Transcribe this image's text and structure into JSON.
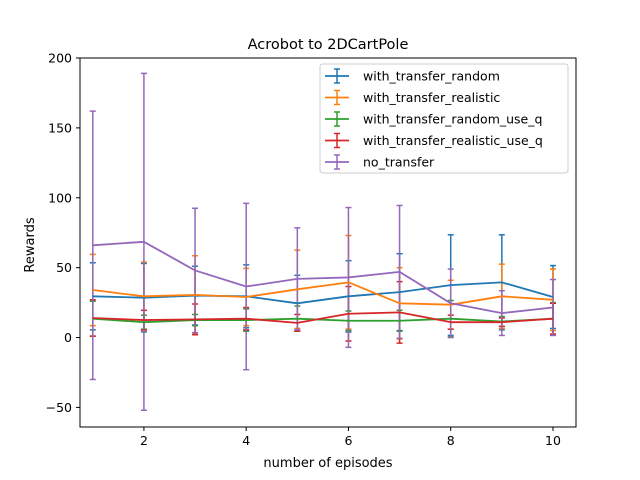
{
  "chart_data": {
    "type": "line",
    "title": "Acrobot to 2DCartPole",
    "xlabel": "number of episodes",
    "ylabel": "Rewards",
    "xlim": [
      0.75,
      10.45
    ],
    "ylim": [
      -64,
      200
    ],
    "x_ticks": [
      2,
      4,
      6,
      8,
      10
    ],
    "y_ticks": [
      -50,
      0,
      50,
      100,
      150,
      200
    ],
    "grid": false,
    "legend_position": "top-right",
    "x": [
      1,
      2,
      3,
      4,
      5,
      6,
      7,
      8,
      9,
      10
    ],
    "series": [
      {
        "name": "with_transfer_random",
        "color": "#1f77b4",
        "values": [
          29.5,
          28.5,
          30.0,
          29.5,
          24.5,
          29.5,
          32.5,
          37.5,
          39.5,
          29.0
        ],
        "errors": [
          24.0,
          24.5,
          21.0,
          22.5,
          20.0,
          25.5,
          27.5,
          36.0,
          34.0,
          22.5
        ]
      },
      {
        "name": "with_transfer_realistic",
        "color": "#ff7f0e",
        "values": [
          34.0,
          29.5,
          30.5,
          29.0,
          34.5,
          39.5,
          24.5,
          23.5,
          29.5,
          27.0
        ],
        "errors": [
          25.5,
          24.5,
          28.0,
          20.5,
          28.0,
          33.5,
          25.5,
          17.5,
          23.0,
          22.0
        ]
      },
      {
        "name": "with_transfer_random_use_q",
        "color": "#2ca02c",
        "values": [
          13.5,
          11.0,
          12.5,
          12.5,
          13.5,
          12.0,
          12.0,
          13.5,
          11.5,
          13.5
        ],
        "errors": [
          12.5,
          5.0,
          4.0,
          8.0,
          9.0,
          7.0,
          7.5,
          13.0,
          3.5,
          11.5
        ]
      },
      {
        "name": "with_transfer_realistic_use_q",
        "color": "#d62728",
        "values": [
          14.0,
          12.5,
          13.0,
          13.5,
          10.5,
          17.0,
          18.0,
          11.0,
          11.0,
          13.5
        ],
        "errors": [
          13.0,
          7.0,
          11.0,
          8.0,
          6.0,
          19.5,
          22.0,
          5.0,
          3.0,
          11.0
        ]
      },
      {
        "name": "no_transfer",
        "color": "#9467bd",
        "values": [
          66.0,
          68.5,
          48.0,
          36.5,
          42.0,
          43.0,
          47.0,
          24.5,
          17.5,
          21.5
        ],
        "errors": [
          96.0,
          120.5,
          44.5,
          59.5,
          36.5,
          50.0,
          47.5,
          24.5,
          16.0,
          20.0
        ]
      }
    ]
  }
}
